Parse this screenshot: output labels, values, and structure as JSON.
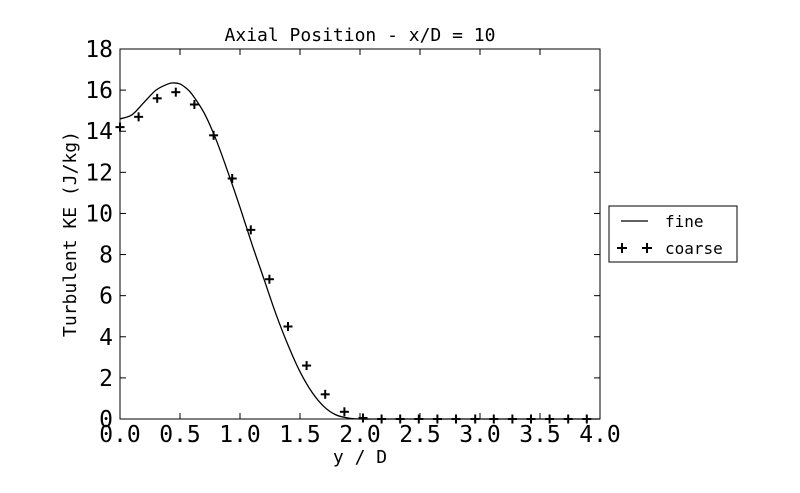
{
  "chart_data": {
    "type": "line",
    "title": "Axial Position - x/D = 10",
    "xlabel": "y / D",
    "ylabel": "Turbulent KE (J/kg)",
    "xlim": [
      0.0,
      4.0
    ],
    "ylim": [
      0,
      18
    ],
    "x_ticks": [
      "0.0",
      "0.5",
      "1.0",
      "1.5",
      "2.0",
      "2.5",
      "3.0",
      "3.5",
      "4.0"
    ],
    "y_ticks": [
      "0",
      "2",
      "4",
      "6",
      "8",
      "10",
      "12",
      "14",
      "16",
      "18"
    ],
    "grid": false,
    "legend_position": "outside-right",
    "series": [
      {
        "name": "fine",
        "style": "line",
        "color": "#000000",
        "x": [
          0.0,
          0.1,
          0.2,
          0.3,
          0.4,
          0.45,
          0.5,
          0.55,
          0.6,
          0.7,
          0.8,
          0.9,
          1.0,
          1.1,
          1.2,
          1.3,
          1.4,
          1.5,
          1.6,
          1.7,
          1.8,
          1.9,
          2.0,
          2.1,
          2.2,
          2.4,
          2.6,
          2.8,
          3.0,
          3.2,
          3.4,
          3.6,
          3.8,
          4.0
        ],
        "y": [
          14.6,
          14.8,
          15.4,
          16.0,
          16.3,
          16.35,
          16.3,
          16.1,
          15.8,
          14.9,
          13.6,
          12.0,
          10.3,
          8.5,
          6.8,
          5.1,
          3.6,
          2.3,
          1.3,
          0.6,
          0.2,
          0.05,
          0.0,
          0.0,
          0.0,
          0.0,
          0.0,
          0.0,
          0.0,
          0.0,
          0.0,
          0.0,
          0.0,
          0.0
        ]
      },
      {
        "name": "coarse",
        "style": "marker",
        "marker": "+",
        "color": "#000000",
        "x": [
          0.0,
          0.155,
          0.31,
          0.465,
          0.62,
          0.78,
          0.935,
          1.09,
          1.245,
          1.4,
          1.555,
          1.71,
          1.87,
          2.025,
          2.18,
          2.335,
          2.49,
          2.645,
          2.8,
          2.96,
          3.115,
          3.27,
          3.425,
          3.58,
          3.735,
          3.89
        ],
        "y": [
          14.2,
          14.7,
          15.6,
          15.9,
          15.3,
          13.8,
          11.7,
          9.2,
          6.8,
          4.5,
          2.6,
          1.2,
          0.35,
          0.05,
          0.0,
          0.0,
          0.0,
          0.0,
          0.0,
          0.0,
          0.0,
          0.0,
          0.0,
          0.0,
          0.0,
          0.0
        ]
      }
    ]
  }
}
